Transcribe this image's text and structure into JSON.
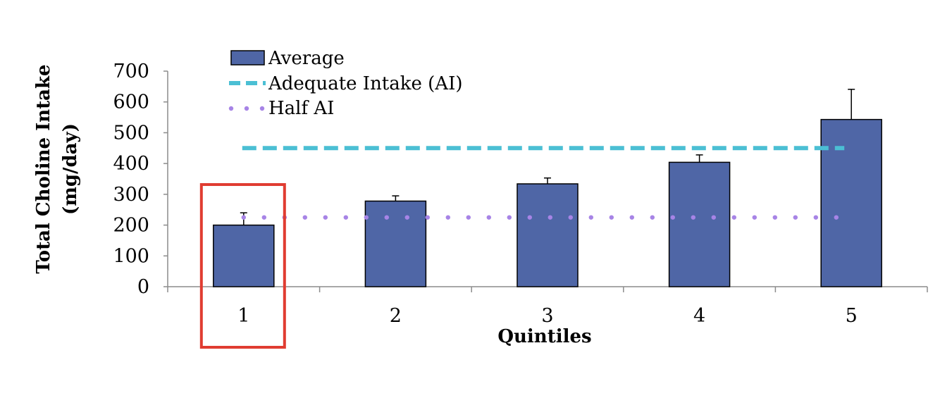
{
  "chart_data": {
    "type": "bar",
    "categories": [
      "1",
      "2",
      "3",
      "4",
      "5"
    ],
    "series": [
      {
        "name": "Average",
        "values": [
          200,
          278,
          334,
          404,
          543
        ],
        "error": [
          40,
          17,
          19,
          24,
          98
        ],
        "color": "#4F66A6"
      }
    ],
    "reference_lines": [
      {
        "name": "Adequate Intake (AI)",
        "value": 450,
        "style": "dashed",
        "color": "#4BBFD4"
      },
      {
        "name": "Half AI",
        "value": 225,
        "style": "dotted",
        "color": "#A784E6"
      }
    ],
    "title": "",
    "xlabel": "Quintiles",
    "ylabel_lines": [
      "Total Choline Intake",
      "(mg/day)"
    ],
    "ylim": [
      0,
      700
    ],
    "yticks": [
      0,
      100,
      200,
      300,
      400,
      500,
      600,
      700
    ],
    "legend_position": "top-left",
    "grid": false,
    "highlight": {
      "category": "1",
      "color": "#E03C31"
    }
  }
}
